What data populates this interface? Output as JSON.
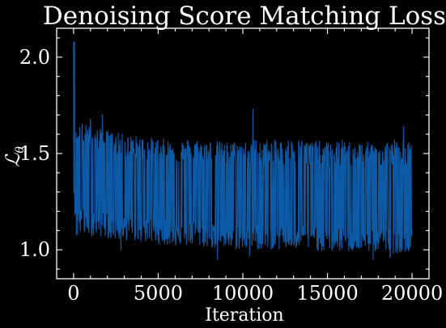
{
  "chart_data": {
    "type": "line",
    "title": "Denoising Score Matching Loss",
    "xlabel": "Iteration",
    "ylabel": "ℒ",
    "ylabel_subscript": "θ",
    "xlim": [
      -1000,
      21000
    ],
    "ylim": [
      0.85,
      2.15
    ],
    "x_ticks": [
      0,
      5000,
      10000,
      15000,
      20000
    ],
    "x_tick_labels": [
      "0",
      "5000",
      "10000",
      "15000",
      "20000"
    ],
    "y_ticks": [
      1.0,
      1.5,
      2.0
    ],
    "y_tick_labels": [
      "1.0",
      "1.5",
      "2.0"
    ],
    "grid": false,
    "legend": "none",
    "series": [
      {
        "color": "#0d5aa7",
        "x": [
          0,
          50,
          100,
          150,
          200,
          300,
          400,
          500,
          750,
          1000,
          1500,
          2000,
          2500,
          3000,
          4000,
          5000,
          6000,
          7000,
          8000,
          9000,
          10000,
          11000,
          12000,
          13000,
          14000,
          15000,
          16000,
          17000,
          18000,
          19000,
          20000
        ],
        "mean": [
          2.08,
          1.6,
          1.45,
          1.4,
          1.4,
          1.39,
          1.38,
          1.38,
          1.37,
          1.37,
          1.36,
          1.35,
          1.34,
          1.33,
          1.32,
          1.31,
          1.3,
          1.3,
          1.29,
          1.29,
          1.28,
          1.28,
          1.28,
          1.28,
          1.27,
          1.27,
          1.27,
          1.26,
          1.26,
          1.26,
          1.26
        ],
        "upper": [
          2.08,
          1.75,
          1.62,
          1.63,
          1.64,
          1.65,
          1.65,
          1.66,
          1.65,
          1.64,
          1.63,
          1.62,
          1.61,
          1.6,
          1.59,
          1.58,
          1.57,
          1.58,
          1.57,
          1.56,
          1.57,
          1.58,
          1.57,
          1.58,
          1.57,
          1.56,
          1.57,
          1.56,
          1.56,
          1.58,
          1.56
        ],
        "lower": [
          1.35,
          1.2,
          1.1,
          1.05,
          1.06,
          1.07,
          1.08,
          1.08,
          1.07,
          1.07,
          1.07,
          1.06,
          1.05,
          1.05,
          1.04,
          1.03,
          1.02,
          1.02,
          1.01,
          1.0,
          1.0,
          1.0,
          1.0,
          1.0,
          1.0,
          0.99,
          0.99,
          0.99,
          0.99,
          0.98,
          1.0
        ],
        "spikes": [
          {
            "x": 50,
            "y": 2.08
          },
          {
            "x": 1000,
            "y": 1.68
          },
          {
            "x": 1700,
            "y": 1.7
          },
          {
            "x": 10600,
            "y": 1.73
          },
          {
            "x": 19500,
            "y": 1.64
          },
          {
            "x": 2800,
            "y": 1.0
          },
          {
            "x": 8500,
            "y": 0.95
          },
          {
            "x": 10400,
            "y": 0.97
          },
          {
            "x": 17700,
            "y": 0.95
          },
          {
            "x": 18700,
            "y": 0.96
          }
        ]
      }
    ]
  }
}
